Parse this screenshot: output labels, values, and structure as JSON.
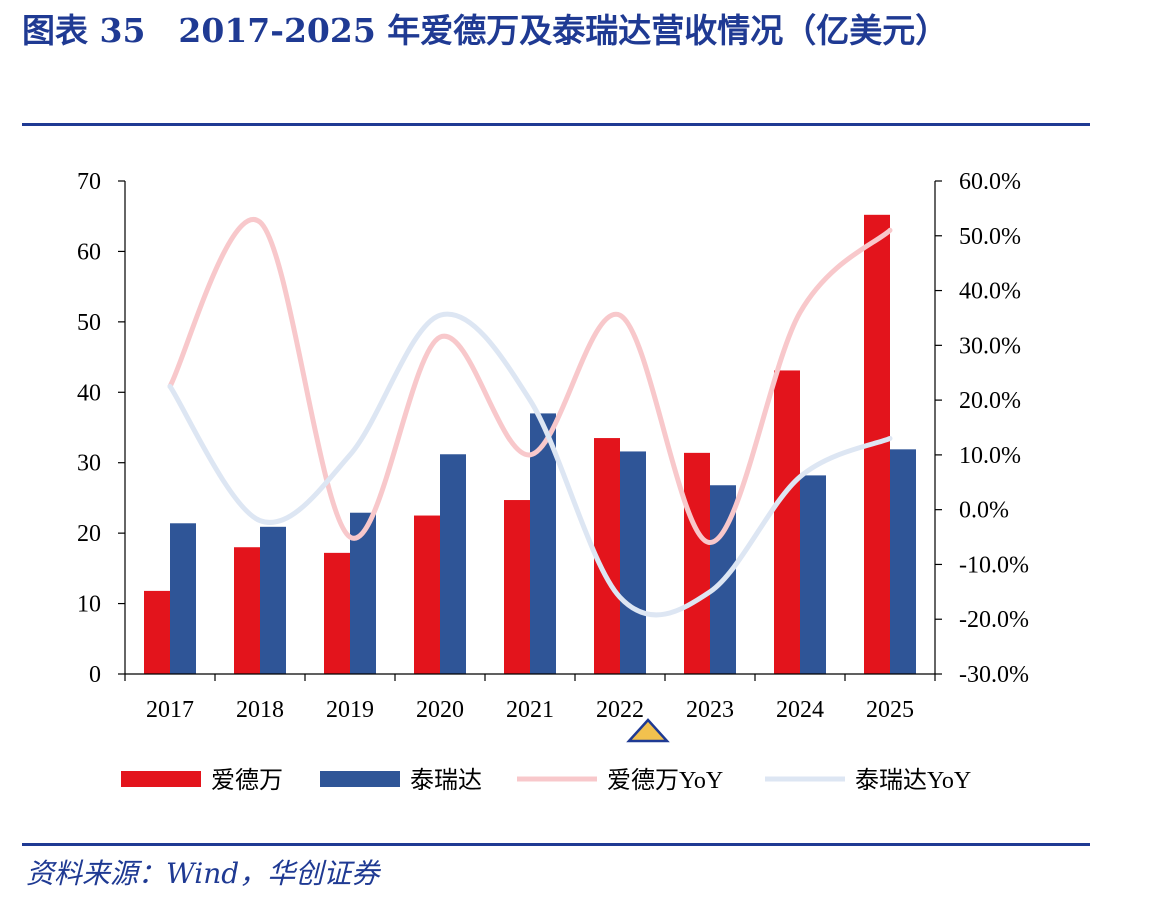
{
  "title": "图表 35　2017-2025 年爱德万及泰瑞达营收情况（亿美元）",
  "source": "资料来源：Wind，华创证券",
  "chart_data": {
    "type": "bar",
    "categories": [
      "2017",
      "2018",
      "2019",
      "2020",
      "2021",
      "2022",
      "2023",
      "2024",
      "2025"
    ],
    "series": [
      {
        "name": "爱德万",
        "type": "bar",
        "axis": "left",
        "color": "#e3141c",
        "values": [
          11.8,
          18.0,
          17.2,
          22.5,
          24.7,
          33.5,
          31.4,
          43.1,
          65.2
        ]
      },
      {
        "name": "泰瑞达",
        "type": "bar",
        "axis": "left",
        "color": "#2f5597",
        "values": [
          21.4,
          20.9,
          22.9,
          31.2,
          37.0,
          31.6,
          26.8,
          28.2,
          31.9
        ]
      },
      {
        "name": "爱德万YoY",
        "type": "line",
        "axis": "right",
        "color": "#f8c8cb",
        "values": [
          0.225,
          0.525,
          -0.05,
          0.315,
          0.1,
          0.355,
          -0.06,
          0.36,
          0.51
        ]
      },
      {
        "name": "泰瑞达YoY",
        "type": "line",
        "axis": "right",
        "color": "#dde6f3",
        "values": [
          0.225,
          -0.02,
          0.1,
          0.355,
          0.2,
          -0.16,
          -0.15,
          0.06,
          0.13
        ]
      }
    ],
    "ylim": [
      0,
      70
    ],
    "yticks": [
      "0",
      "10",
      "20",
      "30",
      "40",
      "50",
      "60",
      "70"
    ],
    "y2lim": [
      -0.3,
      0.6
    ],
    "y2ticks": [
      "-30.0%",
      "-20.0%",
      "-10.0%",
      "0.0%",
      "10.0%",
      "20.0%",
      "30.0%",
      "40.0%",
      "50.0%",
      "60.0%"
    ],
    "legend_position": "bottom",
    "grid": false
  }
}
